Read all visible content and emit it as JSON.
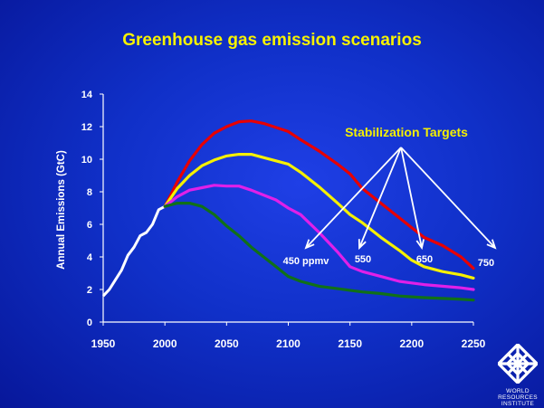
{
  "chart_data": {
    "type": "line",
    "title": "Greenhouse gas emission scenarios",
    "xlabel": "",
    "ylabel": "Annual Emissions (GtC)",
    "xlim": [
      1950,
      2250
    ],
    "ylim": [
      0,
      14
    ],
    "x_ticks": [
      "1950",
      "2000",
      "2050",
      "2100",
      "2150",
      "2200",
      "2250"
    ],
    "y_ticks": [
      "0",
      "2",
      "4",
      "6",
      "8",
      "10",
      "12",
      "14"
    ],
    "grid": false,
    "historical": {
      "x": [
        1950,
        1955,
        1960,
        1965,
        1970,
        1975,
        1980,
        1985,
        1990,
        1995,
        2000
      ],
      "y": [
        1.6,
        2.0,
        2.6,
        3.2,
        4.1,
        4.6,
        5.3,
        5.5,
        6.0,
        6.9,
        7.1
      ]
    },
    "series": [
      {
        "name": "750",
        "color": "#e80000",
        "x": [
          2000,
          2010,
          2020,
          2030,
          2040,
          2050,
          2060,
          2070,
          2080,
          2090,
          2100,
          2110,
          2125,
          2140,
          2150,
          2160,
          2175,
          2190,
          2200,
          2210,
          2225,
          2240,
          2250
        ],
        "y": [
          7.1,
          8.6,
          9.9,
          10.9,
          11.6,
          12.0,
          12.3,
          12.35,
          12.2,
          11.95,
          11.7,
          11.2,
          10.5,
          9.7,
          9.1,
          8.2,
          7.3,
          6.4,
          5.8,
          5.2,
          4.7,
          4.0,
          3.3
        ]
      },
      {
        "name": "650",
        "color": "#f5f000",
        "x": [
          2000,
          2010,
          2020,
          2030,
          2040,
          2050,
          2060,
          2070,
          2080,
          2090,
          2100,
          2110,
          2125,
          2140,
          2150,
          2160,
          2175,
          2190,
          2200,
          2210,
          2225,
          2240,
          2250
        ],
        "y": [
          7.1,
          8.2,
          9.0,
          9.6,
          9.95,
          10.2,
          10.3,
          10.3,
          10.1,
          9.9,
          9.7,
          9.2,
          8.3,
          7.3,
          6.6,
          6.1,
          5.2,
          4.4,
          3.8,
          3.4,
          3.1,
          2.9,
          2.7
        ]
      },
      {
        "name": "550",
        "color": "#e020e8",
        "x": [
          2000,
          2010,
          2020,
          2030,
          2040,
          2050,
          2060,
          2070,
          2080,
          2090,
          2100,
          2110,
          2125,
          2140,
          2150,
          2160,
          2175,
          2190,
          2200,
          2210,
          2225,
          2240,
          2250
        ],
        "y": [
          7.1,
          7.7,
          8.1,
          8.25,
          8.4,
          8.35,
          8.35,
          8.1,
          7.8,
          7.5,
          7.0,
          6.6,
          5.5,
          4.3,
          3.4,
          3.1,
          2.8,
          2.5,
          2.4,
          2.3,
          2.2,
          2.1,
          2.0
        ]
      },
      {
        "name": "450 ppmv",
        "color": "#107018",
        "x": [
          2000,
          2010,
          2020,
          2030,
          2040,
          2050,
          2060,
          2070,
          2080,
          2090,
          2100,
          2110,
          2125,
          2140,
          2150,
          2160,
          2175,
          2190,
          2200,
          2210,
          2225,
          2240,
          2250
        ],
        "y": [
          7.1,
          7.3,
          7.3,
          7.1,
          6.6,
          5.9,
          5.3,
          4.6,
          4.0,
          3.4,
          2.8,
          2.5,
          2.2,
          2.05,
          1.95,
          1.85,
          1.75,
          1.6,
          1.55,
          1.5,
          1.45,
          1.4,
          1.35
        ]
      }
    ],
    "annotation": {
      "title": "Stabilization Targets",
      "labels": [
        "450 ppmv",
        "550",
        "650",
        "750"
      ]
    }
  },
  "logo": {
    "text": "WORLD\nRESOURCES\nINSTITUTE"
  }
}
